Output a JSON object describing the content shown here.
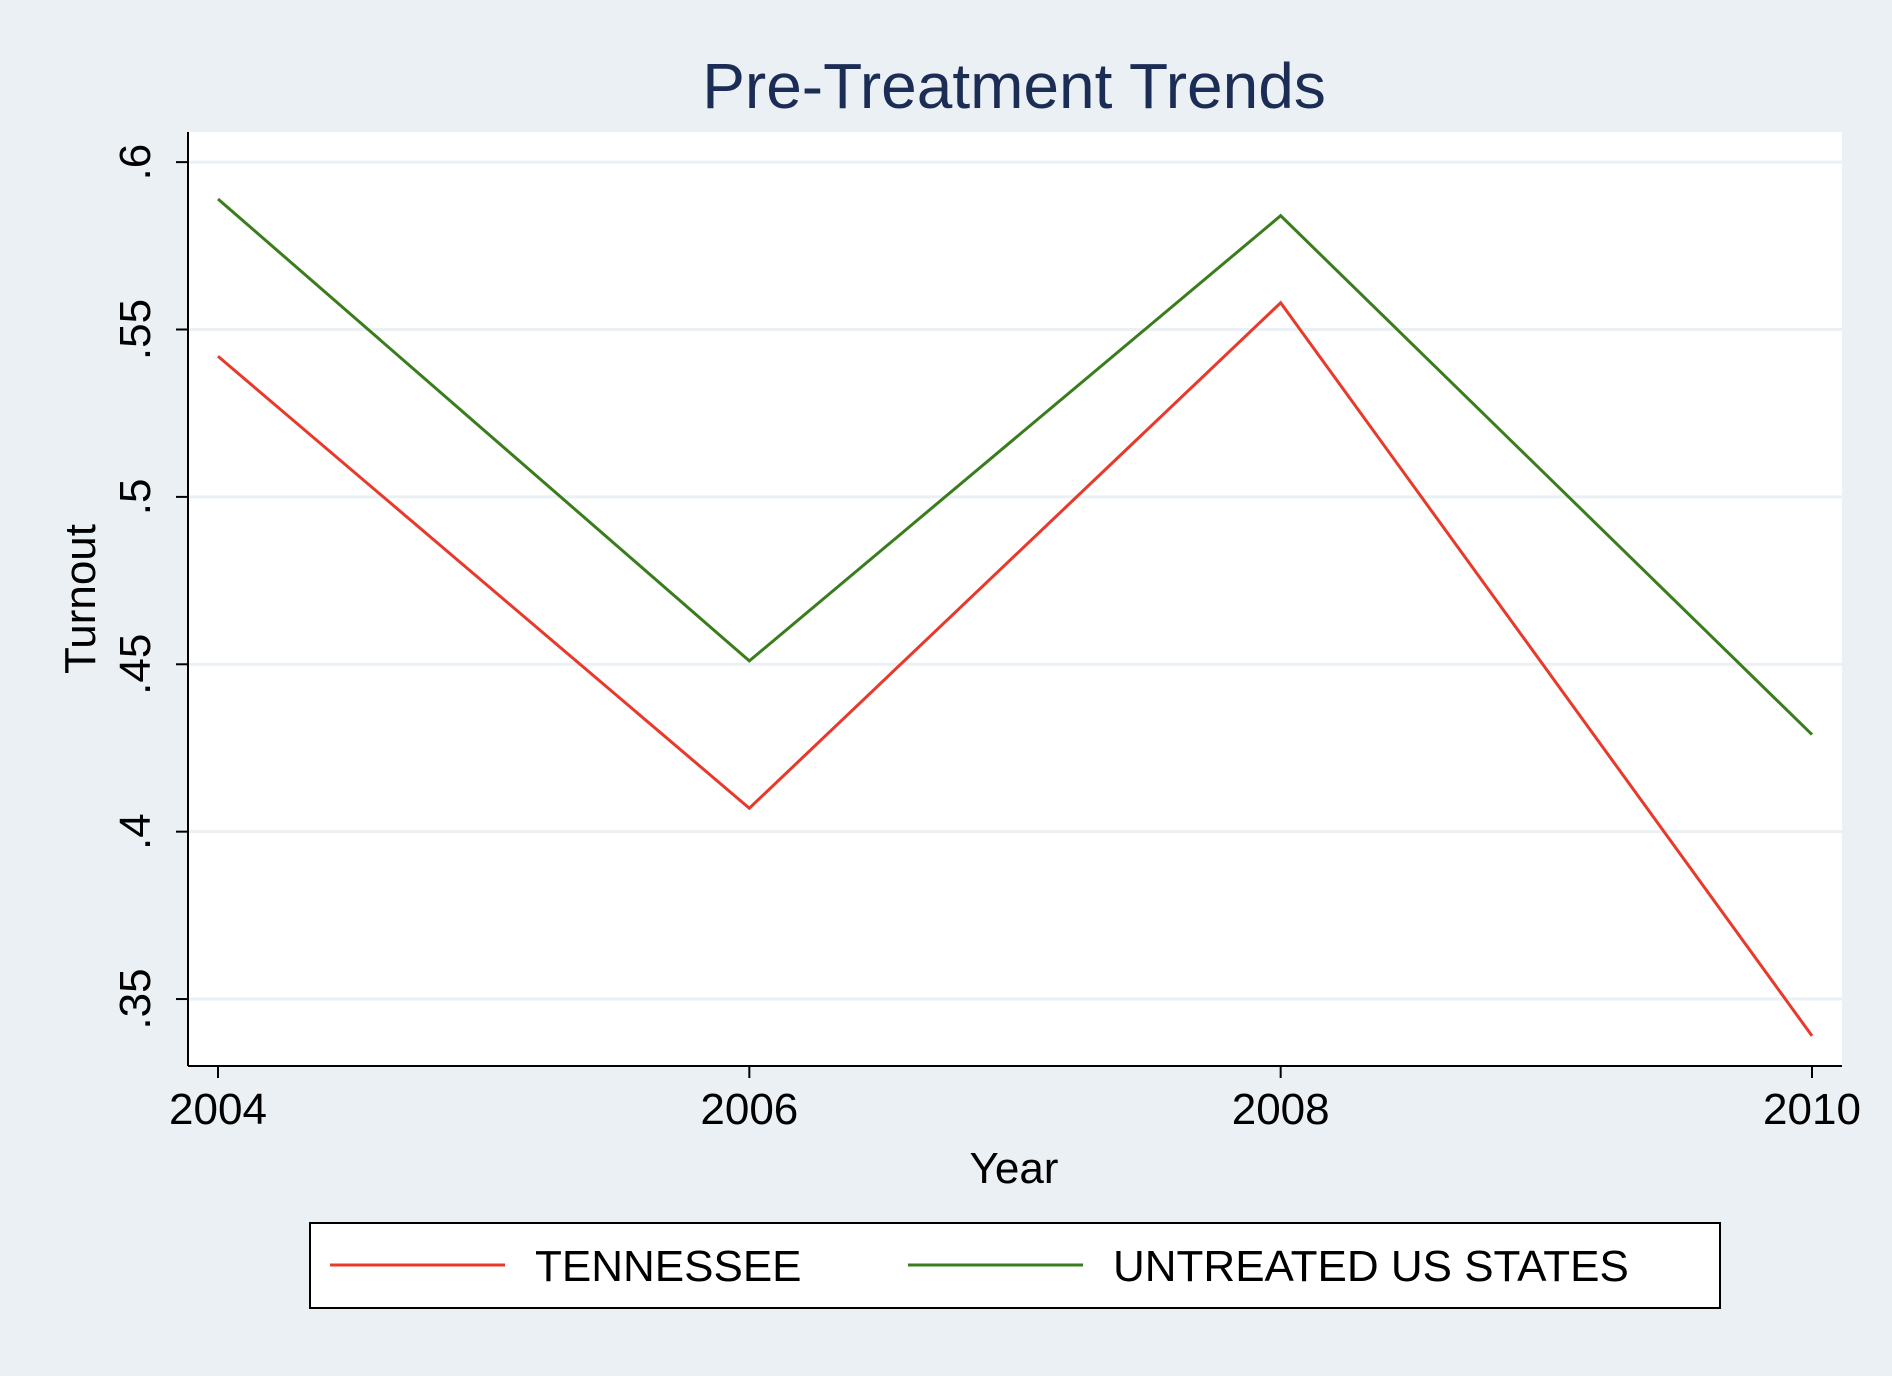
{
  "chart_data": {
    "type": "line",
    "title": "Pre-Treatment Trends",
    "xlabel": "Year",
    "ylabel": "Turnout",
    "x": [
      2004,
      2006,
      2008,
      2010
    ],
    "x_tick_labels": [
      "2004",
      "2006",
      "2008",
      "2010"
    ],
    "y_ticks": [
      0.35,
      0.4,
      0.45,
      0.5,
      0.55,
      0.6
    ],
    "y_tick_labels": [
      ".35",
      ".4",
      ".45",
      ".5",
      ".55",
      ".6"
    ],
    "ylim": [
      0.33,
      0.609
    ],
    "grid": true,
    "legend_position": "bottom",
    "series": [
      {
        "name": "TENNESSEE",
        "color": "#e8392a",
        "values": [
          0.542,
          0.407,
          0.558,
          0.339
        ]
      },
      {
        "name": "UNTREATED US STATES",
        "color": "#3a7d1d",
        "values": [
          0.589,
          0.451,
          0.584,
          0.429
        ]
      }
    ]
  }
}
